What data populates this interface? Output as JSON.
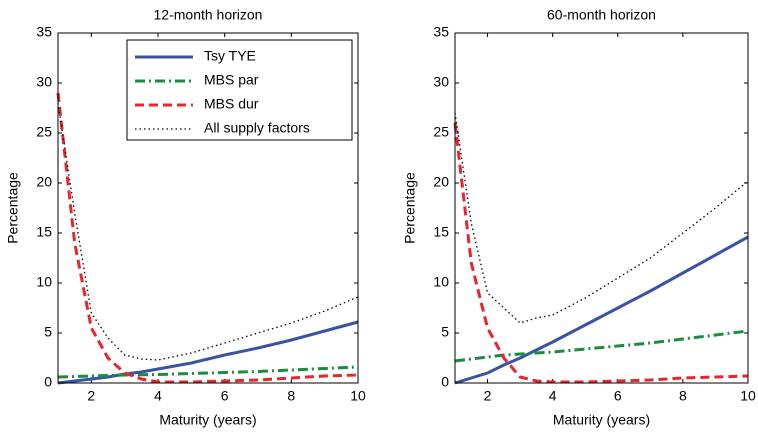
{
  "chart_data": [
    {
      "type": "line",
      "title": "12-month horizon",
      "xlabel": "Maturity (years)",
      "ylabel": "Percentage",
      "x": [
        1,
        1.5,
        2,
        2.5,
        3,
        3.5,
        4,
        5,
        6,
        7,
        8,
        9,
        10
      ],
      "xlim": [
        1,
        10
      ],
      "xticks": [
        2,
        4,
        6,
        8,
        10
      ],
      "ylim": [
        0,
        35
      ],
      "yticks": [
        0,
        5,
        10,
        15,
        20,
        25,
        30,
        35
      ],
      "legend": "upper right",
      "series": [
        {
          "name": "Tsy TYE",
          "color": "#3953a4",
          "dash": "solid",
          "values": [
            0,
            0.2,
            0.4,
            0.6,
            0.9,
            1.1,
            1.4,
            2.0,
            2.8,
            3.5,
            4.3,
            5.2,
            6.1
          ]
        },
        {
          "name": "MBS par",
          "color": "#1a8c3c",
          "dash": "dashdot",
          "values": [
            0.6,
            0.65,
            0.7,
            0.75,
            0.8,
            0.82,
            0.85,
            0.95,
            1.05,
            1.15,
            1.3,
            1.45,
            1.6
          ]
        },
        {
          "name": "MBS dur",
          "color": "#e8252a",
          "dash": "dashed",
          "values": [
            29,
            14,
            5.5,
            2.5,
            1,
            0.4,
            0.1,
            0.1,
            0.2,
            0.3,
            0.5,
            0.7,
            0.8
          ]
        },
        {
          "name": "All supply factors",
          "color": "#000000",
          "dash": "dotted",
          "values": [
            28,
            17,
            7,
            4.5,
            2.8,
            2.4,
            2.3,
            3.0,
            4.0,
            5.0,
            6.0,
            7.2,
            8.6
          ]
        }
      ]
    },
    {
      "type": "line",
      "title": "60-month horizon",
      "xlabel": "Maturity (years)",
      "ylabel": "Percentage",
      "x": [
        1,
        1.5,
        2,
        2.5,
        3,
        3.5,
        4,
        5,
        6,
        7,
        8,
        9,
        10
      ],
      "xlim": [
        1,
        10
      ],
      "xticks": [
        2,
        4,
        6,
        8,
        10
      ],
      "ylim": [
        0,
        35
      ],
      "yticks": [
        0,
        5,
        10,
        15,
        20,
        25,
        30,
        35
      ],
      "series": [
        {
          "color": "#3953a4",
          "dash": "solid",
          "values": [
            0,
            0.5,
            1,
            1.8,
            2.5,
            3.3,
            4.1,
            5.8,
            7.5,
            9.2,
            11,
            12.8,
            14.6
          ]
        },
        {
          "color": "#1a8c3c",
          "dash": "dashdot",
          "values": [
            2.2,
            2.4,
            2.6,
            2.8,
            2.9,
            3.0,
            3.1,
            3.4,
            3.7,
            4.0,
            4.4,
            4.8,
            5.2
          ]
        },
        {
          "color": "#e8252a",
          "dash": "dashed",
          "values": [
            26,
            12,
            5.5,
            2.5,
            0.6,
            0.2,
            0.1,
            0.1,
            0.2,
            0.3,
            0.5,
            0.6,
            0.7
          ]
        },
        {
          "color": "#000000",
          "dash": "dotted",
          "values": [
            27,
            16,
            9,
            7.5,
            6,
            6.5,
            6.8,
            8.5,
            10.5,
            12.5,
            15,
            17.5,
            20.2
          ]
        }
      ]
    }
  ]
}
